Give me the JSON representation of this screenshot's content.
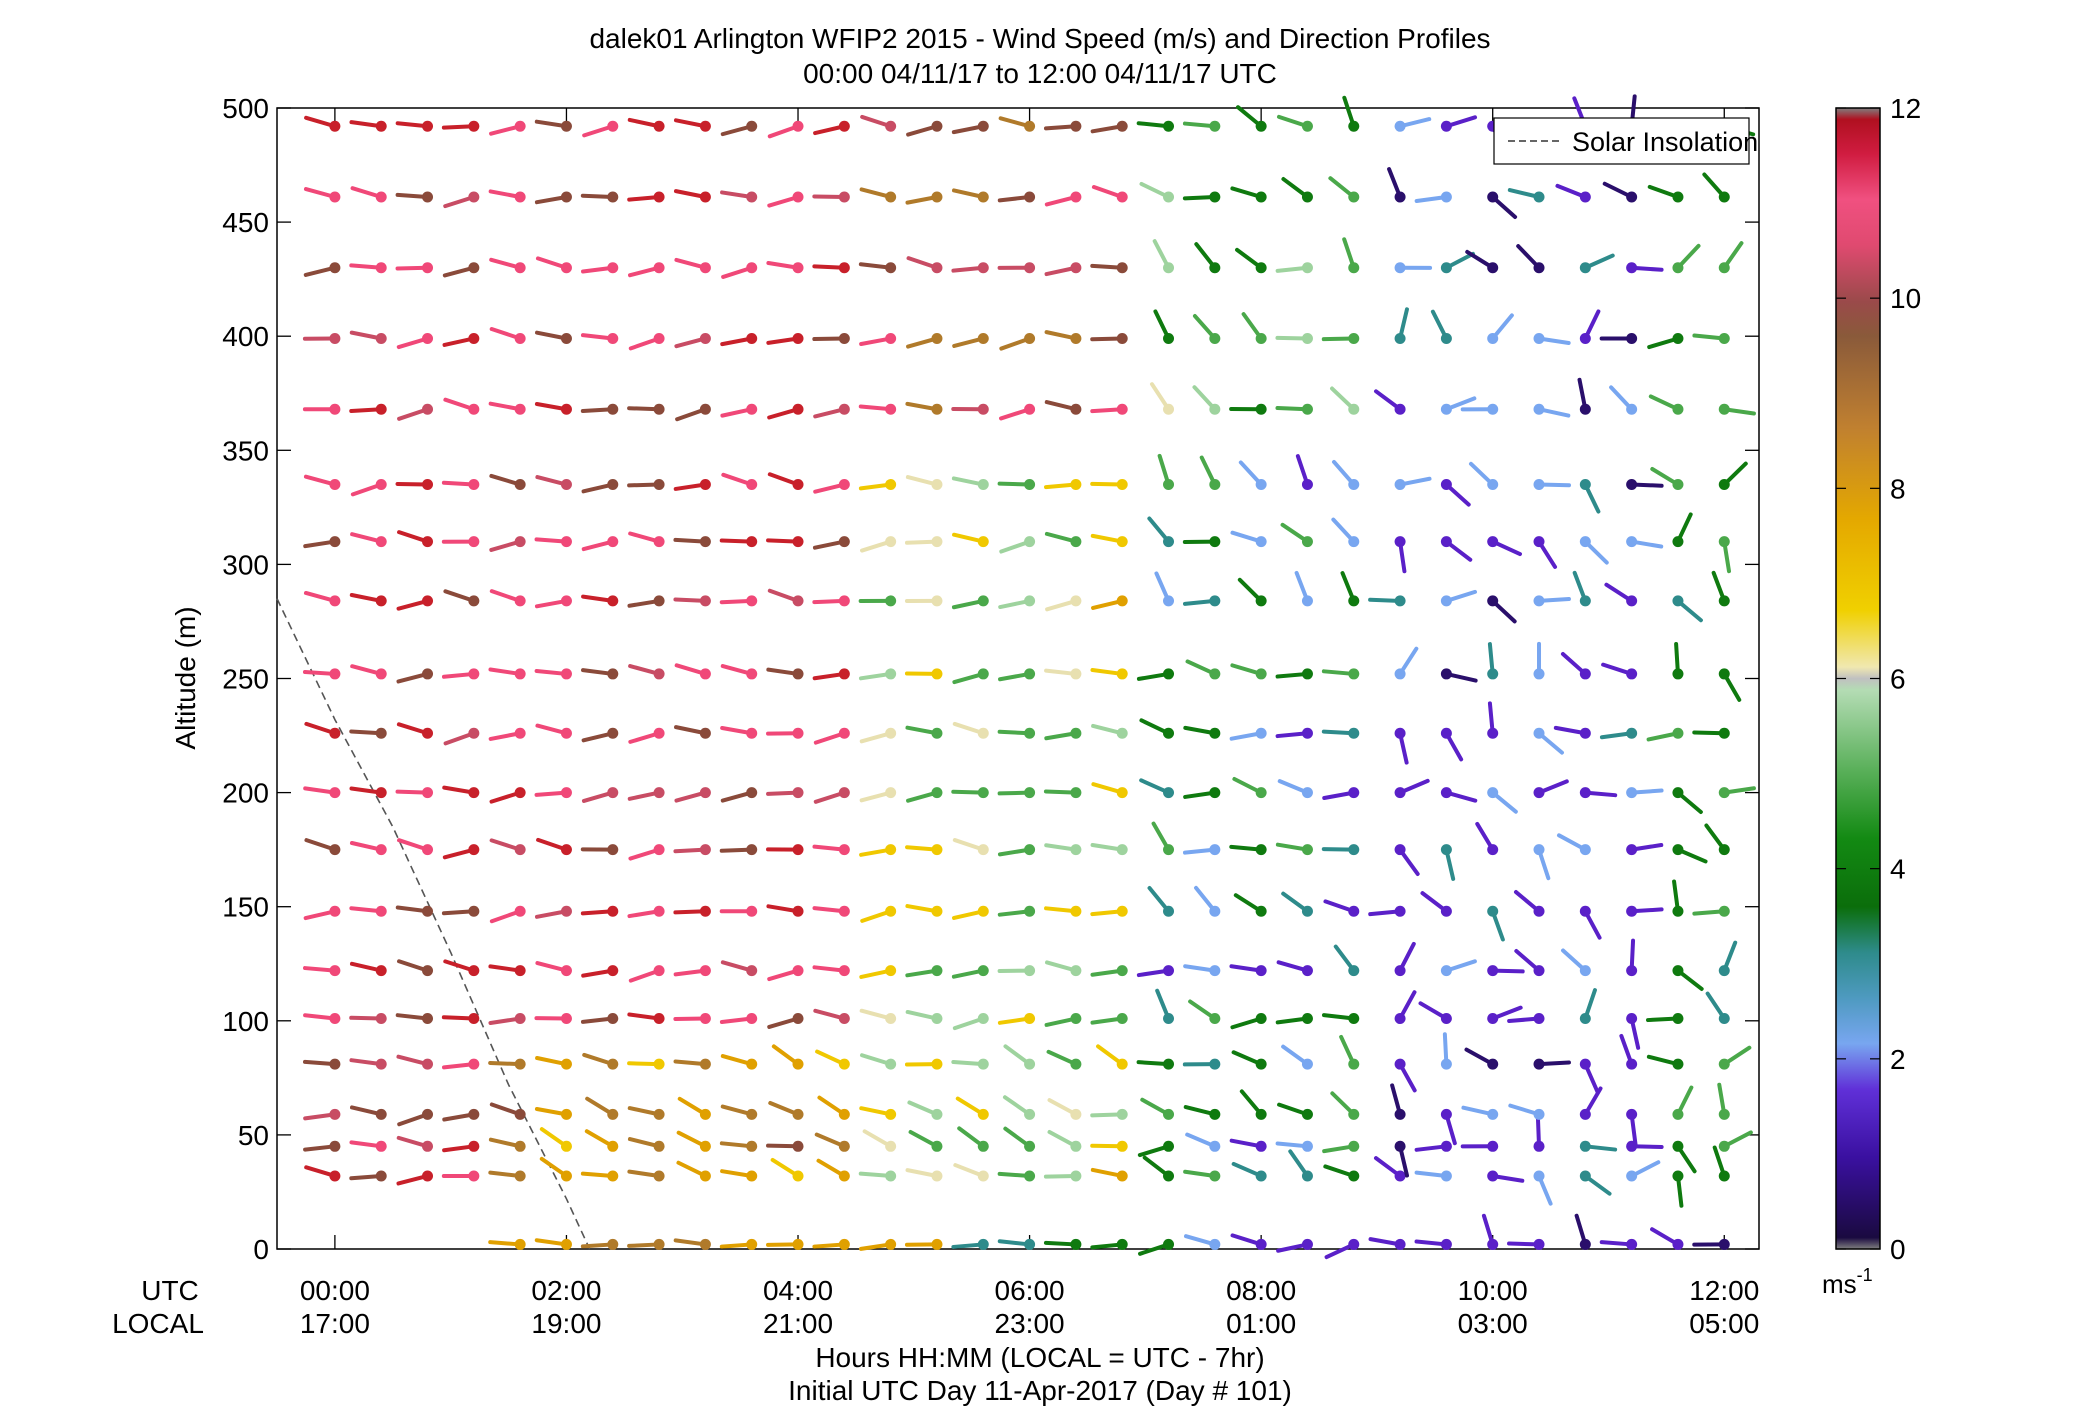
{
  "chart_data": {
    "type": "wind-barb-profile",
    "title": "dalek01 Arlington WFIP2 2015 - Wind Speed (m/s) and Direction Profiles",
    "subtitle": "00:00 04/11/17 to 12:00 04/11/17  UTC",
    "ylabel": "Altitude (m)",
    "xlabel": "Hours HH:MM  (LOCAL = UTC - 7hr)",
    "xlabel2": "Initial UTC Day 11-Apr-2017 (Day # 101)",
    "row_labels": {
      "utc": "UTC",
      "local": "LOCAL"
    },
    "xlim_hours": [
      -0.5,
      12.3
    ],
    "ylim": [
      0,
      500
    ],
    "x_ticks_utc": [
      "00:00",
      "02:00",
      "04:00",
      "06:00",
      "08:00",
      "10:00",
      "12:00"
    ],
    "x_ticks_local": [
      "17:00",
      "19:00",
      "21:00",
      "23:00",
      "01:00",
      "03:00",
      "05:00"
    ],
    "x_tick_hours": [
      0,
      2,
      4,
      6,
      8,
      10,
      12
    ],
    "y_ticks": [
      0,
      50,
      100,
      150,
      200,
      250,
      300,
      350,
      400,
      450,
      500
    ],
    "legend": {
      "label": "Solar Insolation",
      "placement": "top-right"
    },
    "colorbar": {
      "ticks": [
        "0",
        "2",
        "4",
        "6",
        "8",
        "10",
        "12"
      ],
      "unit_base": "ms",
      "unit_exp": "-1",
      "range": [
        0,
        12
      ]
    },
    "solar_insolation_line": [
      [
        -0.5,
        285
      ],
      [
        0.0,
        232
      ],
      [
        0.5,
        185
      ],
      [
        1.0,
        130
      ],
      [
        1.5,
        72
      ],
      [
        2.0,
        22
      ],
      [
        2.2,
        0
      ]
    ],
    "levels_m": [
      32,
      45,
      59,
      81,
      101,
      122,
      148,
      175,
      200,
      226,
      252,
      284,
      310,
      335,
      368,
      399,
      430,
      461,
      492
    ],
    "times_hours": [
      0.0,
      0.4,
      0.8,
      1.2,
      1.6,
      2.0,
      2.4,
      2.8,
      3.2,
      3.6,
      4.0,
      4.4,
      4.8,
      5.2,
      5.6,
      6.0,
      6.4,
      6.8,
      7.2,
      7.6,
      8.0,
      8.4,
      8.8,
      9.2,
      9.6,
      10.0,
      10.4,
      10.8,
      11.2,
      11.6,
      12.0
    ],
    "surface_level_m": 2,
    "surface_start_hour": 1.6,
    "note_values": "wind speed per level/time in m/s (color), direction in degrees (stick orientation); values estimated from the color scale and stick angles"
  },
  "colors": {
    "c0": "#7f7f7f",
    "c1": "#2a0f6b",
    "c2": "#5a20c8",
    "c3": "#78a6f0",
    "c4": "#2e8b8b",
    "c5": "#0f7a0f",
    "c6": "#4aa84a",
    "c7": "#9ed39e",
    "c8": "#e8e0b0",
    "c9": "#f0c800",
    "c10": "#e0a000",
    "c11": "#b07a2a",
    "c12": "#8a4a3a",
    "c13": "#c84c64",
    "c14": "#f04878",
    "c15": "#c8202a",
    "legend_line": "#666666"
  }
}
